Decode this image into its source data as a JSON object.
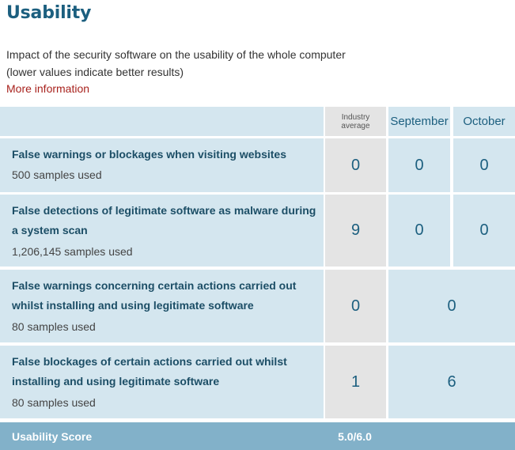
{
  "title": "Usability",
  "description_line1": "Impact of the security software on the usability of the whole computer",
  "description_line2": "(lower values indicate better results)",
  "more_link": "More information",
  "columns": {
    "industry": "Industry average",
    "september": "September",
    "october": "October"
  },
  "rows": [
    {
      "title_lines": [
        "False warnings or blockages when visiting websites"
      ],
      "samples": "500 samples used",
      "industry": "0",
      "september": "0",
      "october": "0"
    },
    {
      "title_lines": [
        "False detections of legitimate software as malware during",
        "a system scan"
      ],
      "samples": "1,206,145 samples used",
      "industry": "9",
      "september": "0",
      "october": "0"
    },
    {
      "title_lines": [
        "False warnings concerning certain actions carried out",
        "whilst installing and using legitimate software"
      ],
      "samples": "80 samples used",
      "industry": "0",
      "combined": "0"
    },
    {
      "title_lines": [
        "False blockages of certain actions carried out whilst",
        "installing and using legitimate software"
      ],
      "samples": "80 samples used",
      "industry": "1",
      "combined": "6"
    }
  ],
  "score": {
    "label": "Usability Score",
    "value": "5.0/6.0"
  }
}
